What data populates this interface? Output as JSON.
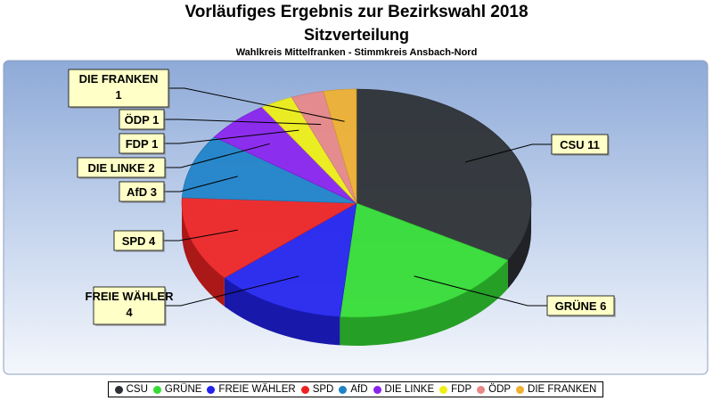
{
  "header": {
    "title": "Vorläufiges Ergebnis zur Bezirkswahl 2018",
    "subtitle": "Sitzverteilung",
    "district": "Wahlkreis Mittelfranken - Stimmkreis Ansbach-Nord"
  },
  "chart_data": {
    "type": "pie",
    "style": "3d-exploded-perspective",
    "legend_position": "bottom",
    "categories": [
      "CSU",
      "GRÜNE",
      "FREIE WÄHLER",
      "SPD",
      "AfD",
      "DIE LINKE",
      "FDP",
      "ÖDP",
      "DIE FRANKEN"
    ],
    "values": [
      11,
      6,
      4,
      4,
      3,
      2,
      1,
      1,
      1
    ],
    "colors": [
      "#2c2f33",
      "#33dd33",
      "#2222ee",
      "#ee2222",
      "#1e82c8",
      "#8a22ee",
      "#f0f014",
      "#e88888",
      "#f0b030"
    ],
    "labels": [
      "CSU 11",
      "GRÜNE 6",
      "FREIE WÄHLER 4",
      "SPD 4",
      "AfD 3",
      "DIE LINKE 2",
      "FDP 1",
      "ÖDP 1",
      "DIE FRANKEN 1"
    ]
  }
}
